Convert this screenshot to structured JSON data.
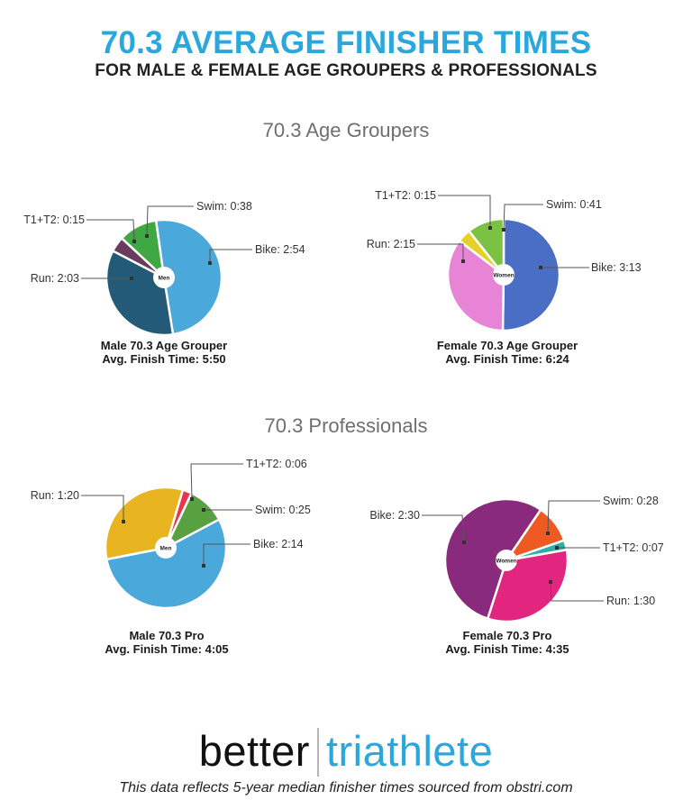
{
  "header": {
    "title": "70.3 AVERAGE FINISHER TIMES",
    "subtitle": "FOR MALE & FEMALE AGE GROUPERS & PROFESSIONALS"
  },
  "sections": {
    "age_groupers": "70.3 Age Groupers",
    "professionals": "70.3 Professionals"
  },
  "captions": {
    "male_ag": {
      "line1": "Male 70.3 Age Grouper",
      "line2": "Avg. Finish Time: 5:50"
    },
    "female_ag": {
      "line1": "Female 70.3 Age Grouper",
      "line2": "Avg. Finish Time: 6:24"
    },
    "male_pro": {
      "line1": "Male 70.3 Pro",
      "line2": "Avg. Finish Time: 4:05"
    },
    "female_pro": {
      "line1": "Female 70.3 Pro",
      "line2": "Avg. Finish Time: 4:35"
    }
  },
  "footer": {
    "logo_left": "better",
    "logo_right": "triathlete",
    "note": "This data reflects 5-year median finisher times sourced from obstri.com"
  },
  "colors": {
    "title_blue": "#2aa8dd",
    "subtitle": "#222222",
    "section_gray": "#6f6f6f"
  },
  "chart_data": [
    {
      "type": "pie",
      "title": "Male 70.3 Age Grouper",
      "center_label": "Men",
      "total": "5:50",
      "categories": [
        "Bike",
        "Run",
        "T1+T2",
        "Swim"
      ],
      "values_minutes": [
        174,
        123,
        15,
        38
      ],
      "labels": [
        "Bike: 2:54",
        "Run: 2:03",
        "T1+T2: 0:15",
        "Swim: 0:38"
      ],
      "colors": [
        "#4aa8da",
        "#235a78",
        "#6b3b5e",
        "#3fa843"
      ]
    },
    {
      "type": "pie",
      "title": "Female 70.3 Age Grouper",
      "center_label": "Women",
      "total": "6:24",
      "categories": [
        "Bike",
        "Run",
        "T1+T2",
        "Swim"
      ],
      "values_minutes": [
        193,
        135,
        15,
        41
      ],
      "labels": [
        "Bike: 3:13",
        "Run: 2:15",
        "T1+T2: 0:15",
        "Swim: 0:41"
      ],
      "colors": [
        "#4a6ec4",
        "#e784d6",
        "#e6d227",
        "#7cc242"
      ]
    },
    {
      "type": "pie",
      "title": "Male 70.3 Pro",
      "center_label": "Men",
      "total": "4:05",
      "categories": [
        "Bike",
        "Run",
        "T1+T2",
        "Swim"
      ],
      "values_minutes": [
        134,
        80,
        6,
        25
      ],
      "labels": [
        "Bike: 2:14",
        "Run: 1:20",
        "T1+T2: 0:06",
        "Swim: 0:25"
      ],
      "colors": [
        "#4aa8da",
        "#e8b520",
        "#e8364f",
        "#58a140"
      ]
    },
    {
      "type": "pie",
      "title": "Female 70.3 Pro",
      "center_label": "Women",
      "total": "4:35",
      "categories": [
        "Run",
        "Bike",
        "Swim",
        "T1+T2"
      ],
      "values_minutes": [
        90,
        150,
        28,
        7
      ],
      "labels": [
        "Run: 1:30",
        "Bike: 2:30",
        "Swim: 0:28",
        "T1+T2: 0:07"
      ],
      "colors": [
        "#e2267f",
        "#892a7d",
        "#ee5a22",
        "#2ab0a8"
      ]
    }
  ]
}
